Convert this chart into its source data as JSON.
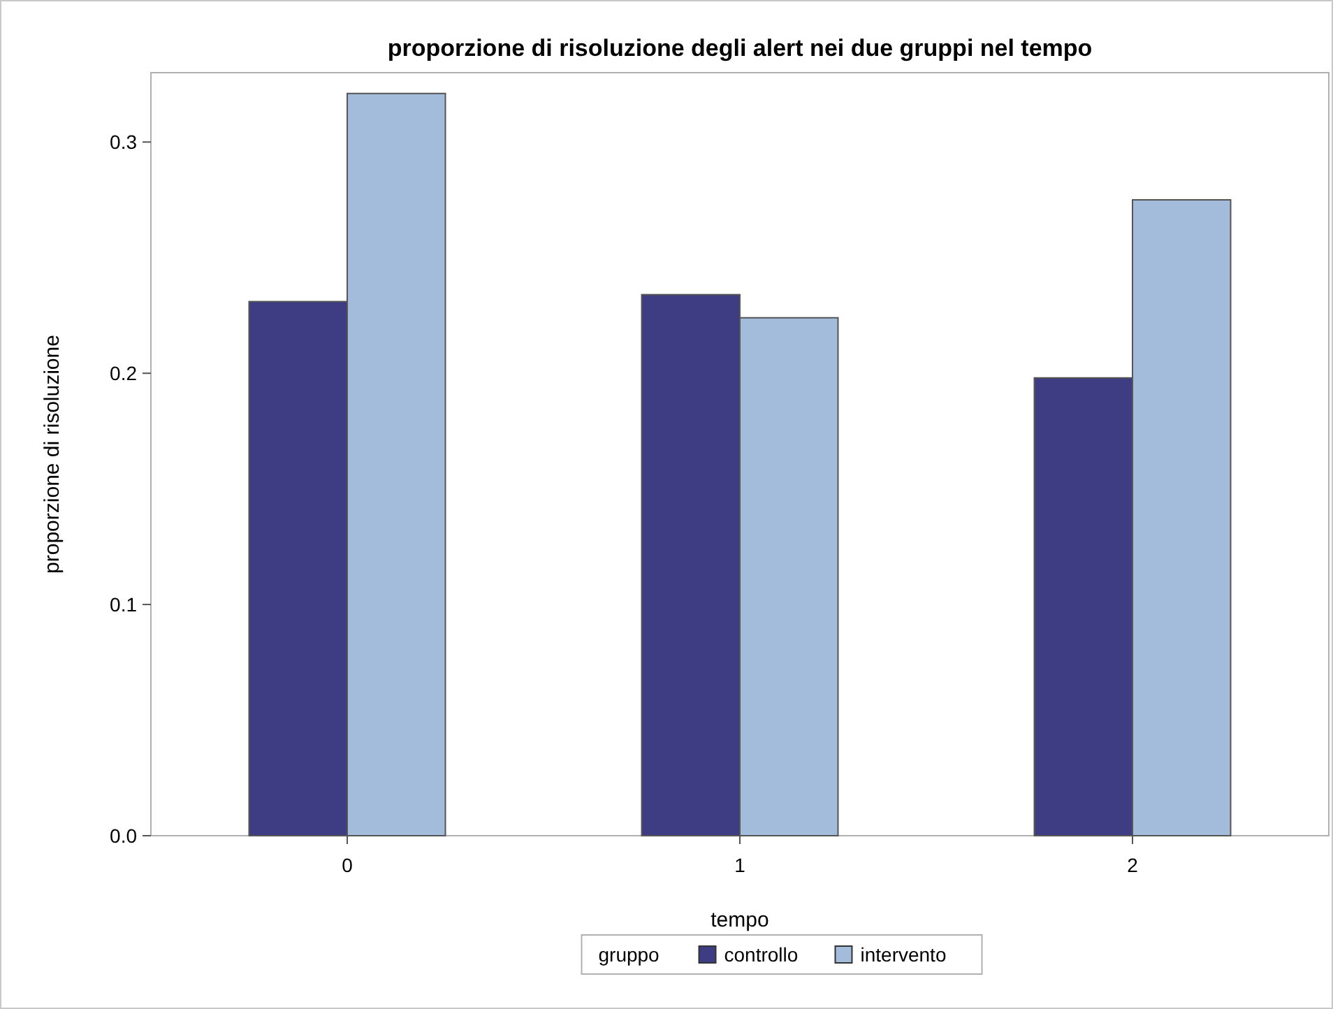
{
  "chart_data": {
    "type": "bar",
    "title": "proporzione di risoluzione degli alert nei due gruppi nel tempo",
    "xlabel": "tempo",
    "ylabel": "proporzione di risoluzione",
    "legend_title": "gruppo",
    "categories": [
      "0",
      "1",
      "2"
    ],
    "series": [
      {
        "name": "controllo",
        "color": "#3e3c82",
        "values": [
          0.231,
          0.234,
          0.198
        ]
      },
      {
        "name": "intervento",
        "color": "#a3bcdc",
        "values": [
          0.321,
          0.224,
          0.275
        ]
      }
    ],
    "ylim": [
      0,
      0.33
    ],
    "yticks": [
      {
        "value": 0,
        "label": "0.0"
      },
      {
        "value": 0.1,
        "label": "0.1"
      },
      {
        "value": 0.2,
        "label": "0.2"
      },
      {
        "value": 0.3,
        "label": "0.3"
      }
    ],
    "grid": false,
    "legend": "bottom"
  }
}
